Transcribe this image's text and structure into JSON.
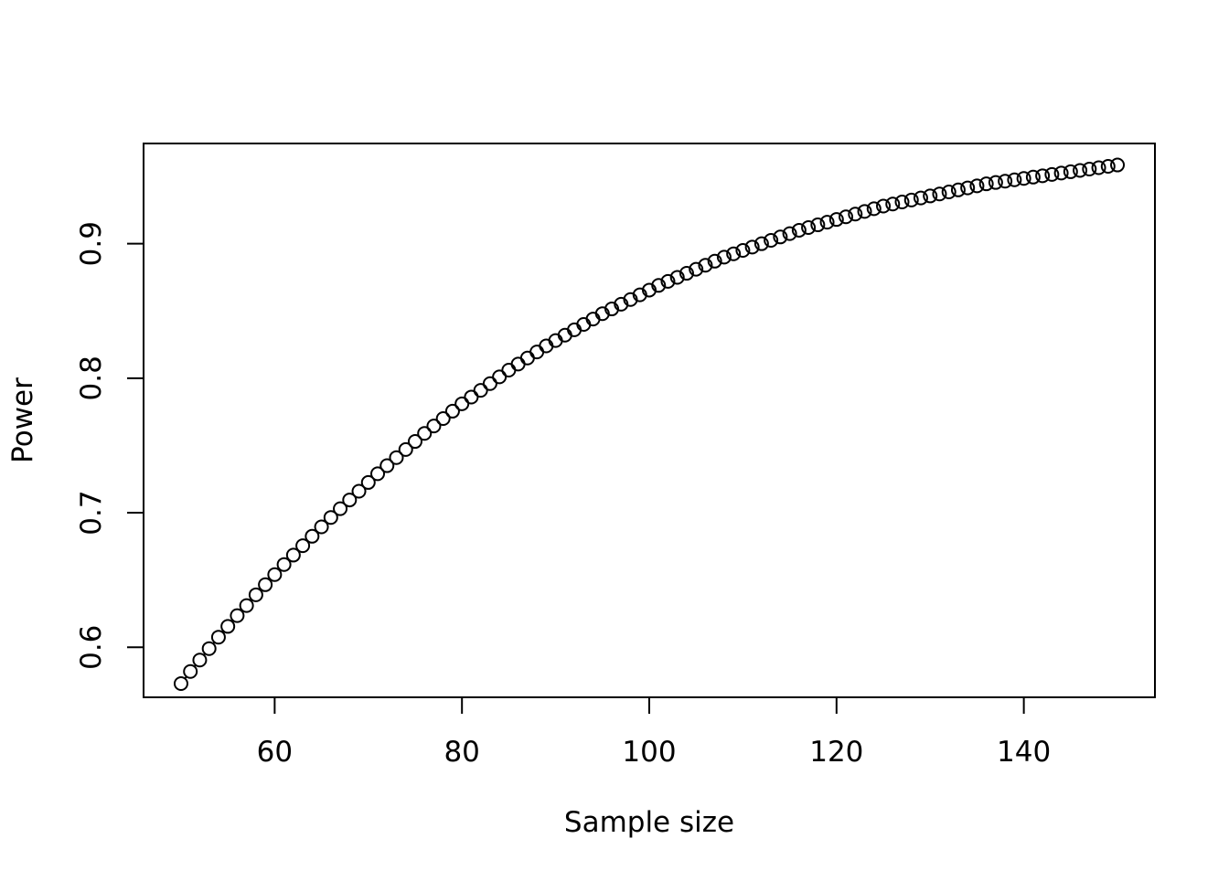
{
  "chart_data": {
    "type": "line",
    "title": "",
    "xlabel": "Sample size",
    "ylabel": "Power",
    "xlim": [
      46,
      154
    ],
    "ylim": [
      0.5628,
      0.9745
    ],
    "xticks": [
      60,
      80,
      100,
      120,
      140
    ],
    "yticks": [
      0.6,
      0.7,
      0.8,
      0.9
    ],
    "xtick_labels": [
      "60",
      "80",
      "100",
      "120",
      "140"
    ],
    "ytick_labels": [
      "0.6",
      "0.7",
      "0.8",
      "0.9"
    ],
    "grid": false,
    "legend": "none",
    "marker": "open-circle",
    "line_color": "#000000",
    "series": [
      {
        "x": [
          50,
          51,
          52,
          53,
          54,
          55,
          56,
          57,
          58,
          59,
          60,
          61,
          62,
          63,
          64,
          65,
          66,
          67,
          68,
          69,
          70,
          71,
          72,
          73,
          74,
          75,
          76,
          77,
          78,
          79,
          80,
          81,
          82,
          83,
          84,
          85,
          86,
          87,
          88,
          89,
          90,
          91,
          92,
          93,
          94,
          95,
          96,
          97,
          98,
          99,
          100,
          101,
          102,
          103,
          104,
          105,
          106,
          107,
          108,
          109,
          110,
          111,
          112,
          113,
          114,
          115,
          116,
          117,
          118,
          119,
          120,
          121,
          122,
          123,
          124,
          125,
          126,
          127,
          128,
          129,
          130,
          131,
          132,
          133,
          134,
          135,
          136,
          137,
          138,
          139,
          140,
          141,
          142,
          143,
          144,
          145,
          146,
          147,
          148,
          149,
          150
        ],
        "values": [
          0.573,
          0.582,
          0.5905,
          0.599,
          0.6075,
          0.6155,
          0.6235,
          0.631,
          0.639,
          0.6465,
          0.654,
          0.6615,
          0.6685,
          0.6755,
          0.6825,
          0.6895,
          0.6965,
          0.703,
          0.7095,
          0.716,
          0.7225,
          0.729,
          0.735,
          0.741,
          0.747,
          0.753,
          0.759,
          0.7645,
          0.77,
          0.7755,
          0.781,
          0.786,
          0.791,
          0.796,
          0.801,
          0.806,
          0.8105,
          0.815,
          0.8195,
          0.824,
          0.828,
          0.832,
          0.836,
          0.84,
          0.844,
          0.848,
          0.8515,
          0.855,
          0.8585,
          0.862,
          0.8655,
          0.869,
          0.872,
          0.875,
          0.878,
          0.881,
          0.884,
          0.887,
          0.89,
          0.8925,
          0.895,
          0.8975,
          0.9,
          0.9025,
          0.905,
          0.9075,
          0.91,
          0.912,
          0.914,
          0.916,
          0.918,
          0.92,
          0.922,
          0.924,
          0.926,
          0.928,
          0.9295,
          0.931,
          0.9325,
          0.934,
          0.9355,
          0.937,
          0.9385,
          0.94,
          0.9415,
          0.943,
          0.9445,
          0.9455,
          0.9465,
          0.9475,
          0.9485,
          0.9495,
          0.9505,
          0.9515,
          0.9525,
          0.9535,
          0.9545,
          0.9555,
          0.9565,
          0.9575,
          0.9585
        ]
      }
    ]
  }
}
